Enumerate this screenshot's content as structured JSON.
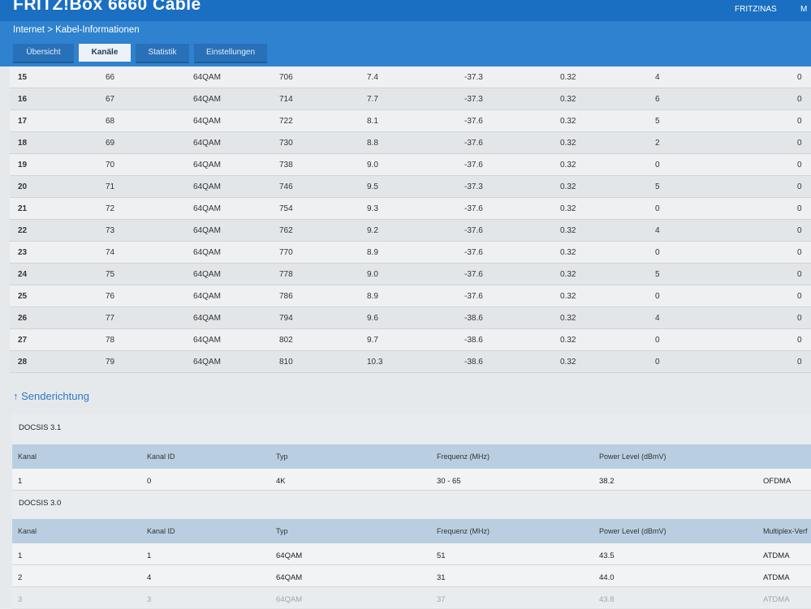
{
  "header": {
    "title": "FRITZ!Box 6660 Cable",
    "user": "FRITZ!NAS",
    "user2": "M"
  },
  "breadcrumb": "Internet > Kabel-Informationen",
  "tabs": [
    {
      "label": "Übersicht"
    },
    {
      "label": "Kanäle"
    },
    {
      "label": "Statistik"
    },
    {
      "label": "Einstellungen"
    }
  ],
  "downstream_rows": [
    [
      "15",
      "66",
      "64QAM",
      "706",
      "7.4",
      "-37.3",
      "0.32",
      "4",
      "0"
    ],
    [
      "16",
      "67",
      "64QAM",
      "714",
      "7.7",
      "-37.3",
      "0.32",
      "6",
      "0"
    ],
    [
      "17",
      "68",
      "64QAM",
      "722",
      "8.1",
      "-37.6",
      "0.32",
      "5",
      "0"
    ],
    [
      "18",
      "69",
      "64QAM",
      "730",
      "8.8",
      "-37.6",
      "0.32",
      "2",
      "0"
    ],
    [
      "19",
      "70",
      "64QAM",
      "738",
      "9.0",
      "-37.6",
      "0.32",
      "0",
      "0"
    ],
    [
      "20",
      "71",
      "64QAM",
      "746",
      "9.5",
      "-37.3",
      "0.32",
      "5",
      "0"
    ],
    [
      "21",
      "72",
      "64QAM",
      "754",
      "9.3",
      "-37.6",
      "0.32",
      "0",
      "0"
    ],
    [
      "22",
      "73",
      "64QAM",
      "762",
      "9.2",
      "-37.6",
      "0.32",
      "4",
      "0"
    ],
    [
      "23",
      "74",
      "64QAM",
      "770",
      "8.9",
      "-37.6",
      "0.32",
      "0",
      "0"
    ],
    [
      "24",
      "75",
      "64QAM",
      "778",
      "9.0",
      "-37.6",
      "0.32",
      "5",
      "0"
    ],
    [
      "25",
      "76",
      "64QAM",
      "786",
      "8.9",
      "-37.6",
      "0.32",
      "0",
      "0"
    ],
    [
      "26",
      "77",
      "64QAM",
      "794",
      "9.6",
      "-38.6",
      "0.32",
      "4",
      "0"
    ],
    [
      "27",
      "78",
      "64QAM",
      "802",
      "9.7",
      "-38.6",
      "0.32",
      "0",
      "0"
    ],
    [
      "28",
      "79",
      "64QAM",
      "810",
      "10.3",
      "-38.6",
      "0.32",
      "0",
      "0"
    ]
  ],
  "senderichtung": {
    "link_label": "↑ Senderichtung",
    "docsis31": {
      "title": "DOCSIS 3.1",
      "headers": [
        "Kanal",
        "Kanal ID",
        "Typ",
        "Frequenz (MHz)",
        "Power Level (dBmV)",
        ""
      ],
      "rows": [
        [
          "1",
          "0",
          "4K",
          "30 - 65",
          "38.2",
          "OFDMA"
        ]
      ]
    },
    "docsis30": {
      "title": "DOCSIS 3.0",
      "headers": [
        "Kanal",
        "Kanal ID",
        "Typ",
        "Frequenz (MHz)",
        "Power Level (dBmV)",
        "Multiplex-Verf"
      ],
      "rows": [
        [
          "1",
          "1",
          "64QAM",
          "51",
          "43.5",
          "ATDMA"
        ],
        [
          "2",
          "4",
          "64QAM",
          "31",
          "44.0",
          "ATDMA"
        ],
        [
          "3",
          "3",
          "64QAM",
          "37",
          "43.8",
          "ATDMA"
        ]
      ]
    }
  },
  "colors": {
    "header": "#1a6fc2",
    "subheader": "#2e82cf",
    "table_head": "#b9cfe1",
    "link": "#2d77c4"
  }
}
